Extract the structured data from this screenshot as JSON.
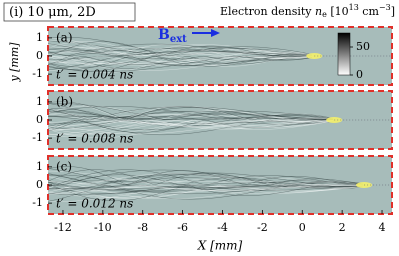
{
  "title": "(i) 10 μm, 2D",
  "colorbar": {
    "label": [
      "Electron density ",
      "n",
      "e",
      " [10",
      "13",
      " cm",
      "−3",
      "]"
    ],
    "clim": [
      0,
      75
    ],
    "ticks": [
      0,
      50
    ]
  },
  "annotation": [
    "B",
    "ext"
  ],
  "chart_data": [
    {
      "type": "density-map",
      "panel": "(a)",
      "time": "t′ = 0.004 ns",
      "ylabel": "y [mm]",
      "xlim": [
        -12.75,
        4.5
      ],
      "ylim": [
        -1.6,
        1.6
      ],
      "yticks": [
        -1,
        0,
        1
      ]
    },
    {
      "type": "density-map",
      "panel": "(b)",
      "time": "t′ = 0.008 ns",
      "xlim": [
        -12.75,
        4.5
      ],
      "ylim": [
        -1.6,
        1.6
      ],
      "yticks": [
        -1,
        0,
        1
      ]
    },
    {
      "type": "density-map",
      "panel": "(c)",
      "time": "t′ = 0.012 ns",
      "xlabel": "X [mm]",
      "xlim": [
        -12.75,
        4.5
      ],
      "ylim": [
        -1.6,
        1.6
      ],
      "yticks": [
        -1,
        0,
        1
      ],
      "xticks": [
        -12,
        -10,
        -8,
        -6,
        -4,
        -2,
        0,
        2,
        4
      ]
    }
  ]
}
